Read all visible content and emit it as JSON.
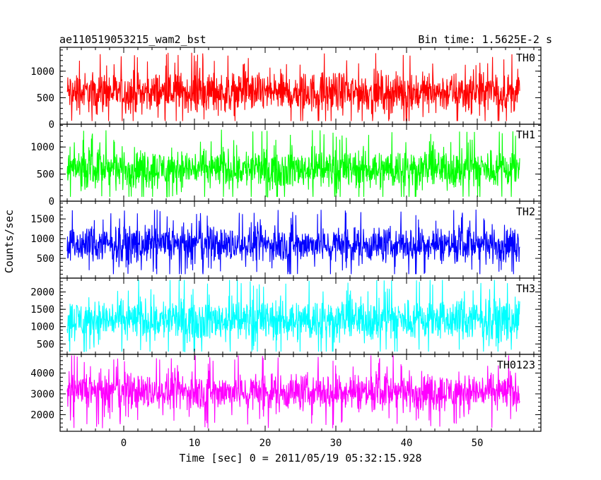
{
  "chart_data": {
    "type": "line",
    "title_left": "ae110519053215_wam2_bst",
    "title_right": "Bin time: 1.5625E-2 s",
    "xlabel": "Time [sec] 0 = 2011/05/19 05:32:15.928",
    "ylabel": "Counts/sec",
    "xlim": [
      -9,
      59
    ],
    "x_range_data": [
      -8,
      56
    ],
    "x_ticks": [
      0,
      10,
      20,
      30,
      40,
      50
    ],
    "grid": false,
    "panels": [
      {
        "name": "TH0",
        "color": "#ff0000",
        "ylim": [
          0,
          1450
        ],
        "y_ticks": [
          0,
          500,
          1000
        ],
        "y_tick_labels": [
          "0",
          "500",
          "1000"
        ],
        "mean": 600,
        "spread": 500,
        "min": 60,
        "max": 1450
      },
      {
        "name": "TH1",
        "color": "#00ff00",
        "ylim": [
          0,
          1420
        ],
        "y_ticks": [
          0,
          500,
          1000
        ],
        "y_tick_labels": [
          "0",
          "500",
          "1000"
        ],
        "mean": 600,
        "spread": 480,
        "min": 80,
        "max": 1420
      },
      {
        "name": "TH2",
        "color": "#0000ff",
        "ylim": [
          0,
          1950
        ],
        "y_ticks": [
          500,
          1000,
          1500
        ],
        "y_tick_labels": [
          "500",
          "1000",
          "1500"
        ],
        "mean": 850,
        "spread": 600,
        "min": 100,
        "max": 1950
      },
      {
        "name": "TH3",
        "color": "#00ffff",
        "ylim": [
          200,
          2400
        ],
        "y_ticks": [
          500,
          1000,
          1500,
          2000
        ],
        "y_tick_labels": [
          "500",
          "1000",
          "1500",
          "2000"
        ],
        "mean": 1200,
        "spread": 800,
        "min": 280,
        "max": 2350
      },
      {
        "name": "TH0123",
        "color": "#ff00ff",
        "ylim": [
          1200,
          4900
        ],
        "y_ticks": [
          2000,
          3000,
          4000
        ],
        "y_tick_labels": [
          "2000",
          "3000",
          "4000"
        ],
        "mean": 3100,
        "spread": 1200,
        "min": 1350,
        "max": 4850
      }
    ]
  }
}
